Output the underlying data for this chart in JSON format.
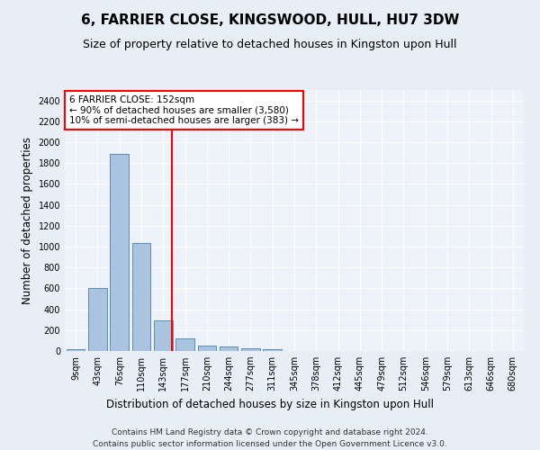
{
  "title": "6, FARRIER CLOSE, KINGSWOOD, HULL, HU7 3DW",
  "subtitle": "Size of property relative to detached houses in Kingston upon Hull",
  "xlabel": "Distribution of detached houses by size in Kingston upon Hull",
  "ylabel": "Number of detached properties",
  "footer_line1": "Contains HM Land Registry data © Crown copyright and database right 2024.",
  "footer_line2": "Contains public sector information licensed under the Open Government Licence v3.0.",
  "bar_labels": [
    "9sqm",
    "43sqm",
    "76sqm",
    "110sqm",
    "143sqm",
    "177sqm",
    "210sqm",
    "244sqm",
    "277sqm",
    "311sqm",
    "345sqm",
    "378sqm",
    "412sqm",
    "445sqm",
    "479sqm",
    "512sqm",
    "546sqm",
    "579sqm",
    "613sqm",
    "646sqm",
    "680sqm"
  ],
  "bar_values": [
    20,
    600,
    1890,
    1035,
    290,
    120,
    55,
    45,
    30,
    20,
    0,
    0,
    0,
    0,
    0,
    0,
    0,
    0,
    0,
    0,
    0
  ],
  "bar_color": "#aac4df",
  "bar_edge_color": "#5b8db8",
  "vline_pos": 4.4,
  "vline_color": "red",
  "annotation_text": "6 FARRIER CLOSE: 152sqm\n← 90% of detached houses are smaller (3,580)\n10% of semi-detached houses are larger (383) →",
  "annotation_box_color": "white",
  "annotation_box_edgecolor": "red",
  "ylim": [
    0,
    2500
  ],
  "yticks": [
    0,
    200,
    400,
    600,
    800,
    1000,
    1200,
    1400,
    1600,
    1800,
    2000,
    2200,
    2400
  ],
  "bg_color": "#e8eef5",
  "plot_bg_color": "#edf2f8",
  "grid_color": "white",
  "title_fontsize": 11,
  "subtitle_fontsize": 9,
  "label_fontsize": 8.5,
  "tick_fontsize": 7,
  "footer_fontsize": 6.5
}
